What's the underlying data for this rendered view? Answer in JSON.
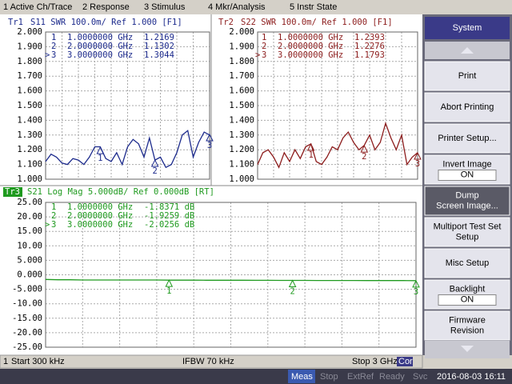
{
  "menu": [
    "1 Active Ch/Trace",
    "2 Response",
    "3 Stimulus",
    "4 Mkr/Analysis",
    "5 Instr State"
  ],
  "chart_data": [
    {
      "type": "line",
      "trace": "Tr1",
      "title": "S11  SWR 100.0m/ Ref 1.000 [F1]",
      "x": [
        0.0003,
        0.1,
        0.2,
        0.3,
        0.4,
        0.5,
        0.6,
        0.7,
        0.8,
        0.9,
        1.0,
        1.1,
        1.2,
        1.3,
        1.4,
        1.5,
        1.6,
        1.7,
        1.8,
        1.9,
        2.0,
        2.1,
        2.2,
        2.3,
        2.4,
        2.5,
        2.6,
        2.7,
        2.8,
        2.9,
        3.0
      ],
      "xlim": [
        0.0003,
        3
      ],
      "ylim": [
        1,
        2
      ],
      "yticks": [
        {
          "value": 2,
          "label": "2.000"
        },
        {
          "value": 1.9,
          "label": "1.900"
        },
        {
          "value": 1.8,
          "label": "1.800"
        },
        {
          "value": 1.7,
          "label": "1.700"
        },
        {
          "value": 1.6,
          "label": "1.600"
        },
        {
          "value": 1.5,
          "label": "1.500"
        },
        {
          "value": 1.4,
          "label": "1.400"
        },
        {
          "value": 1.3,
          "label": "1.300"
        },
        {
          "value": 1.2,
          "label": "1.200"
        },
        {
          "value": 1.1,
          "label": "1.100"
        },
        {
          "value": 1,
          "label": "1.000"
        }
      ],
      "grid": true,
      "series": [
        {
          "color": "#1c2a8c",
          "values": [
            1.12,
            1.17,
            1.15,
            1.11,
            1.1,
            1.14,
            1.13,
            1.1,
            1.15,
            1.22,
            1.22,
            1.14,
            1.12,
            1.18,
            1.1,
            1.22,
            1.27,
            1.24,
            1.15,
            1.28,
            1.13,
            1.15,
            1.08,
            1.1,
            1.18,
            1.3,
            1.33,
            1.15,
            1.25,
            1.32,
            1.3
          ]
        }
      ],
      "markers": [
        {
          "id": "1",
          "x": 1,
          "x_label": "1.0000000 GHz",
          "value": 1.2169
        },
        {
          "id": "2",
          "x": 2,
          "x_label": "2.0000000 GHz",
          "value": 1.1302
        },
        {
          "prefix": ">",
          "id": "3",
          "x": 3,
          "x_label": "3.0000000 GHz",
          "value": 1.3044
        }
      ]
    },
    {
      "type": "line",
      "trace": "Tr2",
      "title": "S22  SWR 100.0m/ Ref 1.000 [F1]",
      "x": [
        0.0003,
        0.1,
        0.2,
        0.3,
        0.4,
        0.5,
        0.6,
        0.7,
        0.8,
        0.9,
        1.0,
        1.1,
        1.2,
        1.3,
        1.4,
        1.5,
        1.6,
        1.7,
        1.8,
        1.9,
        2.0,
        2.1,
        2.2,
        2.3,
        2.4,
        2.5,
        2.6,
        2.7,
        2.8,
        2.9,
        3.0
      ],
      "xlim": [
        0.0003,
        3
      ],
      "ylim": [
        1,
        2
      ],
      "yticks": [
        {
          "value": 2,
          "label": "2.000"
        },
        {
          "value": 1.9,
          "label": "1.900"
        },
        {
          "value": 1.8,
          "label": "1.800"
        },
        {
          "value": 1.7,
          "label": "1.700"
        },
        {
          "value": 1.6,
          "label": "1.600"
        },
        {
          "value": 1.5,
          "label": "1.500"
        },
        {
          "value": 1.4,
          "label": "1.400"
        },
        {
          "value": 1.3,
          "label": "1.300"
        },
        {
          "value": 1.2,
          "label": "1.200"
        },
        {
          "value": 1.1,
          "label": "1.100"
        },
        {
          "value": 1,
          "label": "1.000"
        }
      ],
      "grid": true,
      "series": [
        {
          "color": "#8c1c1c",
          "values": [
            1.1,
            1.18,
            1.2,
            1.15,
            1.08,
            1.18,
            1.12,
            1.2,
            1.14,
            1.22,
            1.24,
            1.12,
            1.1,
            1.15,
            1.22,
            1.2,
            1.28,
            1.32,
            1.25,
            1.2,
            1.23,
            1.3,
            1.2,
            1.25,
            1.38,
            1.28,
            1.2,
            1.3,
            1.1,
            1.15,
            1.18
          ]
        }
      ],
      "markers": [
        {
          "id": "1",
          "x": 1,
          "x_label": "1.0000000 GHz",
          "value": 1.2393
        },
        {
          "id": "2",
          "x": 2,
          "x_label": "2.0000000 GHz",
          "value": 1.2276
        },
        {
          "prefix": ">",
          "id": "3",
          "x": 3,
          "x_label": "3.0000000 GHz",
          "value": 1.1793
        }
      ]
    },
    {
      "type": "line",
      "trace": "Tr3",
      "title": "S21  Log Mag 5.000dB/ Ref 0.000dB [RT]",
      "x": [
        0.0003,
        0.1,
        0.2,
        0.3,
        0.4,
        0.5,
        0.6,
        0.7,
        0.8,
        0.9,
        1.0,
        1.1,
        1.2,
        1.3,
        1.4,
        1.5,
        1.6,
        1.7,
        1.8,
        1.9,
        2.0,
        2.1,
        2.2,
        2.3,
        2.4,
        2.5,
        2.6,
        2.7,
        2.8,
        2.9,
        3.0
      ],
      "xlim": [
        0.0003,
        3
      ],
      "ylim": [
        -25,
        25
      ],
      "yticks": [
        {
          "value": 25,
          "label": "25.00"
        },
        {
          "value": 20,
          "label": "20.00"
        },
        {
          "value": 15,
          "label": "15.00"
        },
        {
          "value": 10,
          "label": "10.00"
        },
        {
          "value": 5,
          "label": "5.000"
        },
        {
          "value": 0,
          "label": "0.000"
        },
        {
          "value": -5,
          "label": "-5.000"
        },
        {
          "value": -10,
          "label": "-10.00"
        },
        {
          "value": -15,
          "label": "-15.00"
        },
        {
          "value": -20,
          "label": "-20.00"
        },
        {
          "value": -25,
          "label": "-25.00"
        }
      ],
      "grid": true,
      "series": [
        {
          "color": "#1f9a1f",
          "values": [
            -1.6,
            -1.7,
            -1.7,
            -1.8,
            -1.8,
            -1.8,
            -1.8,
            -1.8,
            -1.8,
            -1.8,
            -1.84,
            -1.85,
            -1.85,
            -1.87,
            -1.87,
            -1.88,
            -1.88,
            -1.9,
            -1.9,
            -1.92,
            -1.93,
            -1.94,
            -1.95,
            -1.95,
            -1.96,
            -1.97,
            -1.98,
            -1.99,
            -2.0,
            -2.0,
            -2.03
          ]
        }
      ],
      "markers": [
        {
          "id": "1",
          "x": 1,
          "x_label": "1.0000000 GHz",
          "value": -1.8371,
          "value_label": "-1.8371 dB"
        },
        {
          "id": "2",
          "x": 2,
          "x_label": "2.0000000 GHz",
          "value": -1.9259,
          "value_label": "-1.9259 dB"
        },
        {
          "prefix": ">",
          "id": "3",
          "x": 3,
          "x_label": "3.0000000 GHz",
          "value": -2.0256,
          "value_label": "-2.0256 dB"
        }
      ]
    }
  ],
  "status": {
    "channel": "1",
    "start": "Start 300 kHz",
    "ifbw": "IFBW 70 kHz",
    "stop": "Stop 3 GHz",
    "cor": "Cor"
  },
  "status_bar": [
    "Meas",
    "Stop",
    "ExtRef",
    "Ready",
    "Svc",
    "2016-08-03 16:11"
  ],
  "softkeys": {
    "title": "System",
    "buttons": [
      {
        "lines": [
          "Print"
        ]
      },
      {
        "lines": [
          "Abort Printing"
        ]
      },
      {
        "lines": [
          "Printer Setup..."
        ]
      },
      {
        "lines": [
          "Invert Image"
        ],
        "state": "ON"
      },
      {
        "lines": [
          "Dump",
          "Screen Image..."
        ],
        "selected": true
      },
      {
        "lines": [
          "Multiport Test Set",
          "Setup"
        ]
      },
      {
        "lines": [
          "Misc Setup"
        ]
      },
      {
        "lines": [
          "Backlight"
        ],
        "state": "ON"
      },
      {
        "lines": [
          "Firmware",
          "Revision"
        ]
      }
    ]
  }
}
